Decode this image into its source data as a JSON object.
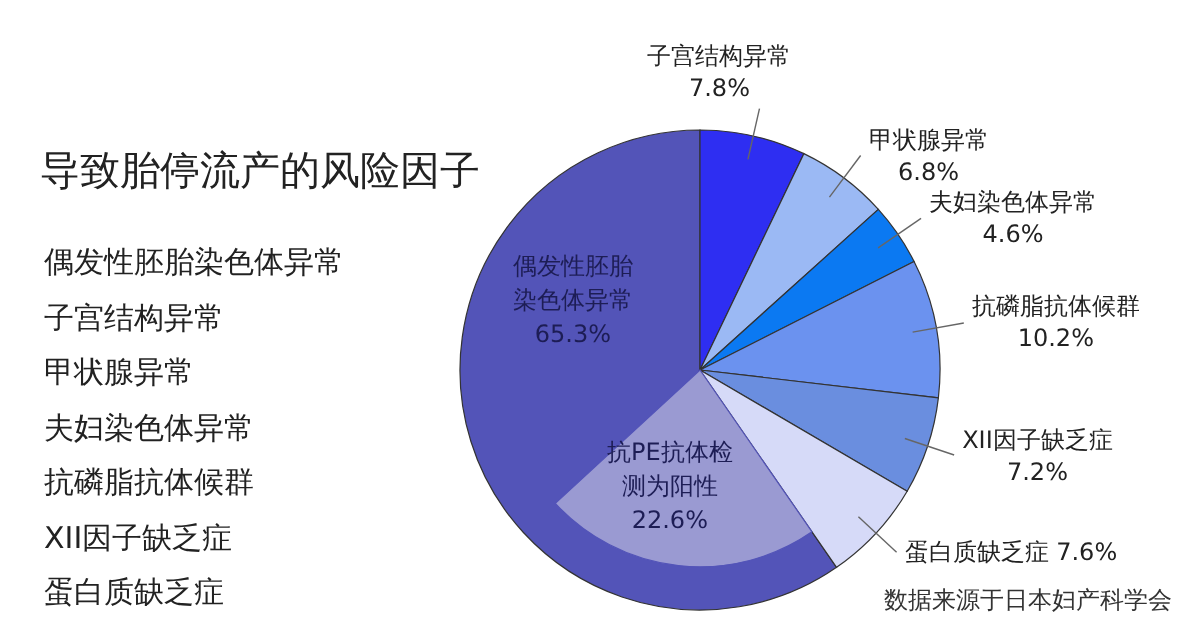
{
  "chart_data": {
    "type": "pie",
    "title": "导致胎停流产的风险因子",
    "categories": [
      "偶发性胚胎染色体异常",
      "子宫结构异常",
      "甲状腺异常",
      "夫妇染色体异常",
      "抗磷脂抗体候群",
      "XII因子缺乏症",
      "蛋白质缺乏症"
    ],
    "values": [
      65.3,
      7.8,
      6.8,
      4.6,
      10.2,
      7.2,
      7.6
    ],
    "colors": [
      "#5354b8",
      "#2e2ef2",
      "#9bb9f4",
      "#0b79f2",
      "#6b92ef",
      "#6a8edf",
      "#d6daf8"
    ],
    "value_labels": [
      "65.3%",
      "7.8%",
      "6.8%",
      "4.6%",
      "10.2%",
      "7.2%",
      "7.6%"
    ],
    "annotations": [
      "抗PE抗体检测为阳性 22.6%",
      "偶发性胚胎染色体异常",
      "子宫结构异常",
      "甲状腺异常",
      "夫妇染色体异常",
      "抗磷脂抗体候群",
      "XII因子缺乏症",
      "蛋白质缺乏症",
      "数据来源于日本妇产科学会"
    ]
  }
}
